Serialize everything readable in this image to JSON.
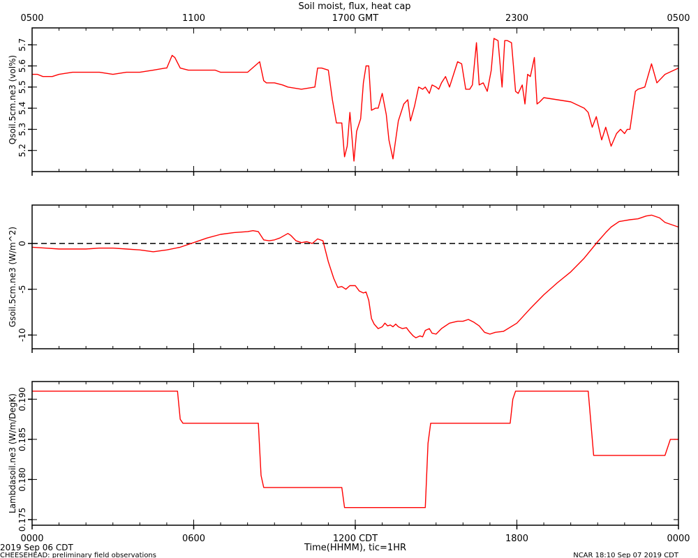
{
  "figure": {
    "title": "Soil moist, flux, heat cap",
    "top_axis_tick_labels": [
      "0500",
      "1100",
      "1700 GMT",
      "2300",
      "0500"
    ],
    "bottom_axis_tick_labels": [
      "0000",
      "0600",
      "1200 CDT",
      "1800",
      "0000"
    ],
    "xlabel": "Time(HHMM), tic=1HR",
    "date_left": "2019 Sep 06 CDT",
    "footer_left": "CHEESEHEAD: preliminary field observations",
    "footer_right": "NCAR 18:10 Sep 07 2019 CDT",
    "line_color": "#ff0000"
  },
  "chart_data": [
    {
      "type": "line",
      "ylabel": "Qsoil.5cm.ne3 (vol%)",
      "x_unit": "hours after 0000 CDT 2019 Sep 06",
      "xlim": [
        0,
        24
      ],
      "ylim": [
        5.1,
        5.78
      ],
      "yticks": [
        5.2,
        5.3,
        5.4,
        5.5,
        5.6,
        5.7
      ],
      "ytick_labels": [
        "5.2",
        "5.3",
        "5.4",
        "5.5",
        "5.6",
        "5.7"
      ],
      "series": [
        {
          "color": "#ff0000",
          "x": [
            0,
            0.2,
            0.4,
            0.75,
            1.0,
            1.5,
            2.0,
            2.5,
            3.0,
            3.5,
            4.0,
            4.5,
            4.95,
            5.0,
            5.2,
            5.3,
            5.5,
            5.8,
            6.2,
            6.5,
            6.8,
            7.0,
            7.5,
            8.0,
            8.45,
            8.6,
            8.7,
            9.0,
            9.3,
            9.5,
            10.0,
            10.5,
            10.6,
            10.75,
            11.0,
            11.15,
            11.3,
            11.5,
            11.6,
            11.7,
            11.8,
            11.95,
            12.05,
            12.2,
            12.3,
            12.4,
            12.5,
            12.6,
            12.75,
            12.85,
            13.0,
            13.15,
            13.25,
            13.4,
            13.6,
            13.8,
            13.95,
            14.05,
            14.2,
            14.35,
            14.5,
            14.6,
            14.75,
            14.85,
            15.0,
            15.1,
            15.2,
            15.35,
            15.5,
            15.65,
            15.8,
            15.95,
            16.1,
            16.25,
            16.35,
            16.5,
            16.6,
            16.75,
            16.9,
            17.05,
            17.15,
            17.3,
            17.45,
            17.55,
            17.65,
            17.8,
            17.95,
            18.05,
            18.2,
            18.3,
            18.4,
            18.5,
            18.65,
            18.75,
            18.85,
            19.0,
            19.5,
            20.0,
            20.5,
            20.65,
            20.8,
            20.95,
            21.15,
            21.3,
            21.5,
            21.7,
            21.85,
            22.0,
            22.1,
            22.2,
            22.4,
            22.5,
            22.75,
            23.0,
            23.2,
            23.5,
            24.0
          ],
          "y": [
            5.56,
            5.56,
            5.55,
            5.55,
            5.56,
            5.57,
            5.57,
            5.57,
            5.56,
            5.57,
            5.57,
            5.58,
            5.59,
            5.59,
            5.65,
            5.64,
            5.59,
            5.58,
            5.58,
            5.58,
            5.58,
            5.57,
            5.57,
            5.57,
            5.62,
            5.53,
            5.52,
            5.52,
            5.51,
            5.5,
            5.49,
            5.5,
            5.59,
            5.59,
            5.58,
            5.44,
            5.33,
            5.33,
            5.17,
            5.22,
            5.38,
            5.15,
            5.29,
            5.35,
            5.52,
            5.6,
            5.6,
            5.39,
            5.4,
            5.4,
            5.47,
            5.37,
            5.25,
            5.16,
            5.34,
            5.42,
            5.44,
            5.34,
            5.41,
            5.5,
            5.49,
            5.5,
            5.47,
            5.51,
            5.5,
            5.49,
            5.52,
            5.55,
            5.5,
            5.56,
            5.62,
            5.61,
            5.49,
            5.49,
            5.51,
            5.71,
            5.51,
            5.52,
            5.48,
            5.58,
            5.73,
            5.72,
            5.5,
            5.72,
            5.72,
            5.71,
            5.48,
            5.47,
            5.51,
            5.42,
            5.56,
            5.55,
            5.64,
            5.42,
            5.43,
            5.45,
            5.44,
            5.43,
            5.4,
            5.38,
            5.31,
            5.36,
            5.25,
            5.31,
            5.22,
            5.28,
            5.3,
            5.28,
            5.3,
            5.3,
            5.48,
            5.49,
            5.5,
            5.61,
            5.52,
            5.56,
            5.59
          ]
        }
      ]
    },
    {
      "type": "line",
      "ylabel": "Gsoil.5cm.ne3 (W/m^2)",
      "x_unit": "hours after 0000 CDT 2019 Sep 06",
      "xlim": [
        0,
        24
      ],
      "ylim": [
        -11.5,
        4.2
      ],
      "yticks": [
        -10,
        -5,
        0
      ],
      "ytick_labels": [
        "-10",
        "-5",
        "0"
      ],
      "reference_line": {
        "y": 0,
        "style": "dashed"
      },
      "series": [
        {
          "color": "#ff0000",
          "x": [
            0,
            0.5,
            1.0,
            1.5,
            2.0,
            2.5,
            3.0,
            3.5,
            4.0,
            4.5,
            5.0,
            5.5,
            6.0,
            6.5,
            7.0,
            7.5,
            8.0,
            8.2,
            8.4,
            8.6,
            8.8,
            9.0,
            9.2,
            9.5,
            9.6,
            9.8,
            10.0,
            10.2,
            10.4,
            10.6,
            10.8,
            11.0,
            11.2,
            11.35,
            11.5,
            11.65,
            11.8,
            12.0,
            12.15,
            12.3,
            12.4,
            12.5,
            12.6,
            12.7,
            12.85,
            13.0,
            13.1,
            13.2,
            13.3,
            13.4,
            13.5,
            13.6,
            13.75,
            13.9,
            14.0,
            14.15,
            14.25,
            14.4,
            14.5,
            14.6,
            14.75,
            14.85,
            15.0,
            15.2,
            15.5,
            15.8,
            16.0,
            16.2,
            16.4,
            16.6,
            16.8,
            17.0,
            17.2,
            17.5,
            18.0,
            18.5,
            19.0,
            19.5,
            20.0,
            20.5,
            21.0,
            21.3,
            21.5,
            21.8,
            22.0,
            22.2,
            22.5,
            22.8,
            23.0,
            23.3,
            23.5,
            24.0
          ],
          "y": [
            -0.4,
            -0.5,
            -0.6,
            -0.6,
            -0.6,
            -0.5,
            -0.5,
            -0.6,
            -0.7,
            -0.9,
            -0.7,
            -0.4,
            0.1,
            0.6,
            1.0,
            1.2,
            1.3,
            1.4,
            1.3,
            0.4,
            0.3,
            0.4,
            0.6,
            1.1,
            0.9,
            0.3,
            0.1,
            0.2,
            0.0,
            0.5,
            0.3,
            -2.0,
            -3.8,
            -4.8,
            -4.7,
            -5.0,
            -4.6,
            -4.6,
            -5.2,
            -5.4,
            -5.3,
            -6.2,
            -8.2,
            -8.8,
            -9.3,
            -9.1,
            -8.7,
            -9.0,
            -8.9,
            -9.1,
            -8.8,
            -9.1,
            -9.3,
            -9.2,
            -9.6,
            -10.1,
            -10.3,
            -10.1,
            -10.2,
            -9.5,
            -9.3,
            -9.8,
            -9.9,
            -9.3,
            -8.7,
            -8.5,
            -8.5,
            -8.3,
            -8.6,
            -9.0,
            -9.7,
            -9.9,
            -9.7,
            -9.6,
            -8.7,
            -7.1,
            -5.6,
            -4.3,
            -3.1,
            -1.6,
            0.2,
            1.2,
            1.8,
            2.4,
            2.5,
            2.6,
            2.7,
            3.0,
            3.1,
            2.8,
            2.3,
            1.8
          ]
        }
      ]
    },
    {
      "type": "line",
      "ylabel": "Lambdasoil.ne3 (W/m/DegK)",
      "x_unit": "hours after 0000 CDT 2019 Sep 06",
      "xlim": [
        0,
        24
      ],
      "ylim": [
        0.1743,
        0.1922
      ],
      "yticks": [
        0.175,
        0.18,
        0.185,
        0.19
      ],
      "ytick_labels": [
        "0.175",
        "0.180",
        "0.185",
        "0.190"
      ],
      "series": [
        {
          "color": "#ff0000",
          "x": [
            0,
            5.4,
            5.5,
            5.6,
            8.4,
            8.5,
            8.6,
            11.5,
            11.6,
            14.6,
            14.7,
            14.8,
            17.75,
            17.85,
            17.95,
            20.65,
            20.75,
            20.85,
            23.5,
            23.7,
            24.0
          ],
          "y": [
            0.191,
            0.191,
            0.1875,
            0.187,
            0.187,
            0.1805,
            0.179,
            0.179,
            0.1765,
            0.1765,
            0.1845,
            0.187,
            0.187,
            0.19,
            0.191,
            0.191,
            0.187,
            0.183,
            0.183,
            0.185,
            0.185
          ]
        }
      ]
    }
  ]
}
